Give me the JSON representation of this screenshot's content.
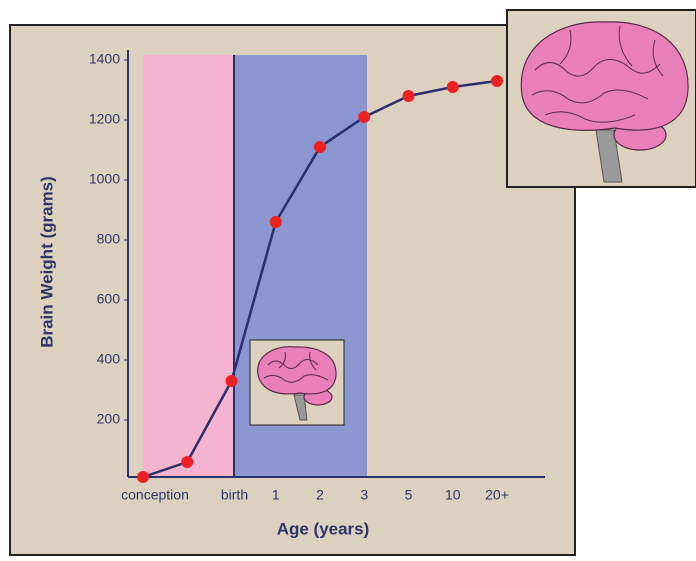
{
  "chart_data": {
    "type": "line",
    "categories": [
      "conception",
      null,
      "birth",
      "1",
      "2",
      "3",
      "5",
      "10",
      "20+"
    ],
    "values": [
      10,
      60,
      330,
      860,
      1110,
      1210,
      1280,
      1310,
      1330
    ],
    "line_color": "#2b2f6b",
    "marker_color": "#ee2222",
    "x_label": "Age (years)",
    "y_label": "Brain Weight (grams)",
    "ylim": [
      0,
      1400
    ],
    "yticks": [
      200,
      400,
      600,
      800,
      1000,
      1200,
      1400
    ],
    "grid": false
  }
}
